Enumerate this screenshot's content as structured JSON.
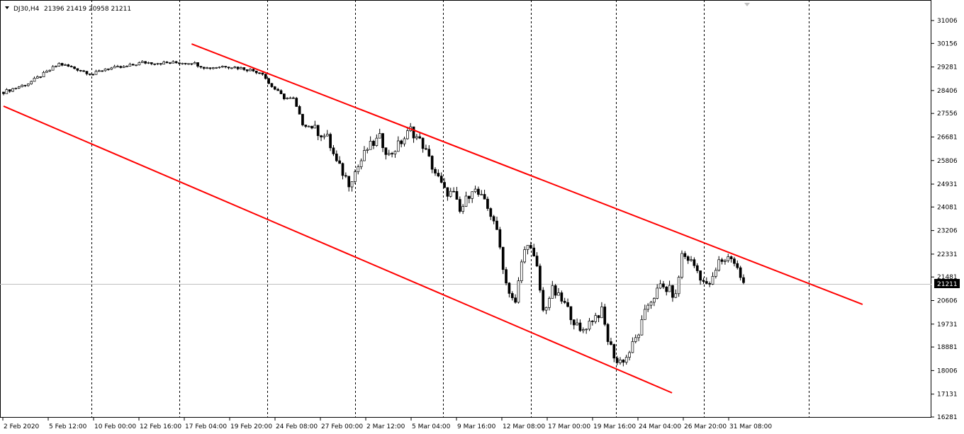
{
  "header": {
    "symbol": "DJ30,H4",
    "ohlc": "21396 21419 20958 21211"
  },
  "chart_data": {
    "type": "candlestick",
    "title": "DJ30,H4",
    "ylim": [
      16281,
      31006
    ],
    "y_ticks": [
      31006,
      30156,
      29281,
      28406,
      27556,
      26681,
      25806,
      24931,
      24081,
      23206,
      22331,
      21481,
      20606,
      19731,
      18881,
      18006,
      17131,
      16281
    ],
    "x_ticks": [
      "2 Feb 2020",
      "5 Feb 12:00",
      "10 Feb 00:00",
      "12 Feb 16:00",
      "17 Feb 04:00",
      "19 Feb 20:00",
      "24 Feb 08:00",
      "27 Feb 00:00",
      "2 Mar 12:00",
      "5 Mar 04:00",
      "9 Mar 16:00",
      "12 Mar 08:00",
      "17 Mar 00:00",
      "19 Mar 16:00",
      "24 Mar 04:00",
      "26 Mar 20:00",
      "31 Mar 08:00"
    ],
    "current_price": "21211",
    "price_path": [
      [
        0,
        28350
      ],
      [
        8,
        28670
      ],
      [
        14,
        29090
      ],
      [
        18,
        29400
      ],
      [
        24,
        29200
      ],
      [
        29,
        29010
      ],
      [
        33,
        29220
      ],
      [
        39,
        29270
      ],
      [
        45,
        29450
      ],
      [
        52,
        29430
      ],
      [
        61,
        29450
      ],
      [
        66,
        29240
      ],
      [
        72,
        29320
      ],
      [
        78,
        29220
      ],
      [
        84,
        29060
      ],
      [
        86,
        28670
      ],
      [
        91,
        28140
      ],
      [
        94,
        28090
      ],
      [
        97,
        27170
      ],
      [
        100,
        27040
      ],
      [
        105,
        26640
      ],
      [
        108,
        25720
      ],
      [
        112,
        24990
      ],
      [
        115,
        25590
      ],
      [
        118,
        26250
      ],
      [
        122,
        26640
      ],
      [
        125,
        25990
      ],
      [
        130,
        26640
      ],
      [
        132,
        26960
      ],
      [
        136,
        26380
      ],
      [
        139,
        25590
      ],
      [
        143,
        24670
      ],
      [
        146,
        24540
      ],
      [
        148,
        23880
      ],
      [
        152,
        24800
      ],
      [
        155,
        24410
      ],
      [
        159,
        23620
      ],
      [
        161,
        22570
      ],
      [
        163,
        21250
      ],
      [
        166,
        20460
      ],
      [
        168,
        22040
      ],
      [
        170,
        22830
      ],
      [
        173,
        21780
      ],
      [
        175,
        20200
      ],
      [
        178,
        20990
      ],
      [
        182,
        20460
      ],
      [
        184,
        20070
      ],
      [
        187,
        19410
      ],
      [
        191,
        19940
      ],
      [
        194,
        20200
      ],
      [
        196,
        19150
      ],
      [
        199,
        18310
      ],
      [
        202,
        18490
      ],
      [
        206,
        19410
      ],
      [
        209,
        20460
      ],
      [
        213,
        21120
      ],
      [
        216,
        20990
      ],
      [
        218,
        20730
      ],
      [
        220,
        22310
      ],
      [
        222,
        22170
      ],
      [
        224,
        21910
      ],
      [
        228,
        21120
      ],
      [
        230,
        21380
      ],
      [
        232,
        22040
      ],
      [
        236,
        22250
      ],
      [
        238,
        21780
      ],
      [
        240,
        21211
      ]
    ],
    "trendlines": [
      {
        "from": [
          61,
          30138
        ],
        "to": [
          278.6,
          20464
        ],
        "color": "#ff0000"
      },
      {
        "from": [
          0,
          27825
        ],
        "to": [
          216.8,
          17178
        ],
        "color": "#ff0000"
      }
    ],
    "colors": {
      "candle": "#000000",
      "trendline": "#ff0000",
      "grid": "#000000",
      "price_line": "#c0c0c0"
    }
  }
}
